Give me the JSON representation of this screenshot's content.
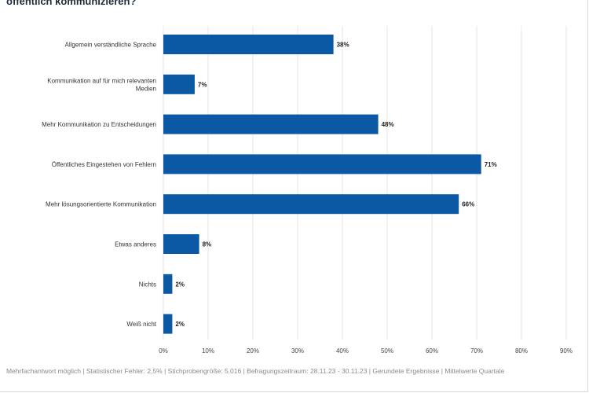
{
  "title": "öffentlich kommunizieren?",
  "footnote": "Mehrfachantwort möglich | Statistischer Fehler: 2,5% | Stichprobengröße: 5.016 | Befragungszeitraum: 28.11.23 - 30.11.23 | Gerundete Ergebnisse | Mittelwerte Quartale",
  "chart_data": {
    "type": "bar",
    "orientation": "horizontal",
    "categories": [
      [
        "Allgemein verständliche Sprache"
      ],
      [
        "Kommunikation auf für mich relevanten",
        "Medien"
      ],
      [
        "Mehr Kommunikation zu Entscheidungen"
      ],
      [
        "Öffentliches Eingestehen von Fehlern"
      ],
      [
        "Mehr lösungsorientierte Kommunikation"
      ],
      [
        "Etwas anderes"
      ],
      [
        "Nichts"
      ],
      [
        "Weiß nicht"
      ]
    ],
    "values": [
      38,
      7,
      48,
      71,
      66,
      8,
      2,
      2
    ],
    "value_labels": [
      "38%",
      "7%",
      "48%",
      "71%",
      "66%",
      "8%",
      "2%",
      "2%"
    ],
    "xlim": [
      0,
      90
    ],
    "ticks": [
      0,
      10,
      20,
      30,
      40,
      50,
      60,
      70,
      80,
      90
    ],
    "tick_labels": [
      "0%",
      "10%",
      "20%",
      "30%",
      "40%",
      "50%",
      "60%",
      "70%",
      "80%",
      "90%"
    ],
    "grid": true,
    "colors": {
      "bar": "#0b58a5",
      "grid": "#e6e6e6"
    }
  }
}
